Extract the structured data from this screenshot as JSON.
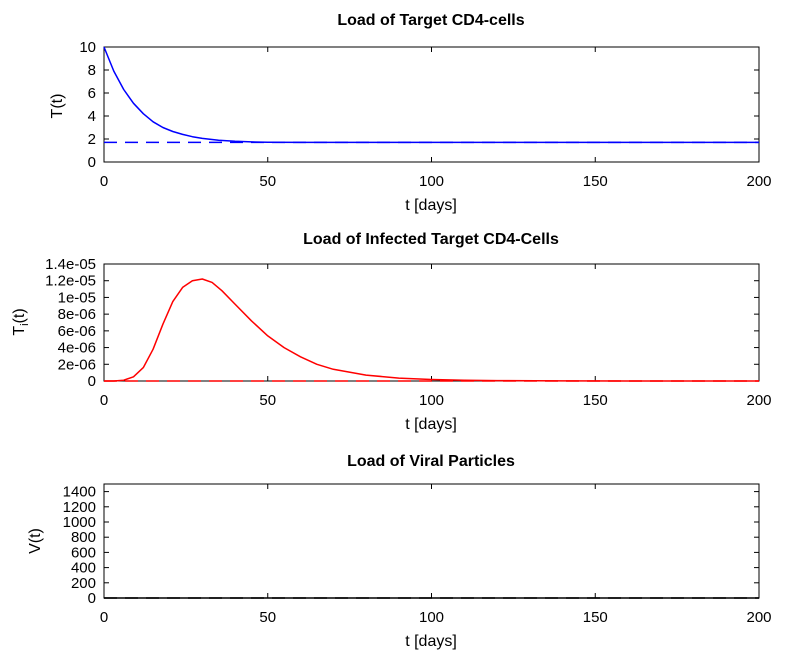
{
  "chart_data": [
    {
      "type": "line",
      "title": "Load of Target CD4-cells",
      "xlabel": "t [days]",
      "ylabel": "T(t)",
      "xlim": [
        0,
        200
      ],
      "ylim": [
        0,
        10
      ],
      "xticks": [
        0,
        50,
        100,
        150,
        200
      ],
      "xtick_labels": [
        "0",
        "50",
        "100",
        "150",
        "200"
      ],
      "yticks": [
        0,
        2,
        4,
        6,
        8,
        10
      ],
      "ytick_labels": [
        "0",
        "2",
        "4",
        "6",
        "8",
        "10"
      ],
      "series": [
        {
          "name": "T",
          "color": "#0000ff",
          "style": "solid",
          "x": [
            0,
            3,
            6,
            9,
            12,
            15,
            18,
            21,
            24,
            27,
            30,
            35,
            40,
            45,
            50,
            60,
            70,
            80,
            100,
            150,
            200
          ],
          "y": [
            10,
            7.9,
            6.3,
            5.1,
            4.2,
            3.5,
            3.0,
            2.65,
            2.4,
            2.2,
            2.05,
            1.9,
            1.8,
            1.75,
            1.72,
            1.7,
            1.7,
            1.7,
            1.7,
            1.7,
            1.7
          ]
        },
        {
          "name": "T equilibrium",
          "color": "#0000ff",
          "style": "dashed",
          "x": [
            0,
            200
          ],
          "y": [
            1.7,
            1.7
          ]
        }
      ]
    },
    {
      "type": "line",
      "title": "Load of Infected Target CD4-Cells",
      "xlabel": "t [days]",
      "ylabel_main": "T",
      "ylabel_sub": "i",
      "ylabel_rest": "(t)",
      "xlim": [
        0,
        200
      ],
      "ylim": [
        0,
        1.4e-05
      ],
      "xticks": [
        0,
        50,
        100,
        150,
        200
      ],
      "xtick_labels": [
        "0",
        "50",
        "100",
        "150",
        "200"
      ],
      "yticks": [
        0,
        2e-06,
        4e-06,
        6e-06,
        8e-06,
        1e-05,
        1.2e-05,
        1.4e-05
      ],
      "ytick_labels": [
        "0",
        "2e-06",
        "4e-06",
        "6e-06",
        "8e-06",
        "1e-05",
        "1.2e-05",
        "1.4e-05"
      ],
      "series": [
        {
          "name": "Ti",
          "color": "#ff0000",
          "style": "solid",
          "x": [
            0,
            3,
            6,
            9,
            12,
            15,
            18,
            21,
            24,
            27,
            30,
            33,
            36,
            40,
            45,
            50,
            55,
            60,
            65,
            70,
            80,
            90,
            100,
            110,
            120,
            140,
            160,
            200
          ],
          "y": [
            0,
            0,
            1e-07,
            5e-07,
            1.6e-06,
            3.8e-06,
            6.8e-06,
            9.5e-06,
            1.12e-05,
            1.2e-05,
            1.22e-05,
            1.18e-05,
            1.08e-05,
            9.2e-06,
            7.2e-06,
            5.4e-06,
            4e-06,
            2.9e-06,
            2e-06,
            1.4e-06,
            7e-07,
            3.5e-07,
            1.8e-07,
            9e-08,
            5e-08,
            1e-08,
            0,
            0
          ]
        },
        {
          "name": "Ti equilibrium",
          "color": "#ff0000",
          "style": "dashed",
          "x": [
            0,
            200
          ],
          "y": [
            0,
            0
          ]
        }
      ]
    },
    {
      "type": "line",
      "title": "Load of Viral Particles",
      "xlabel": "t [days]",
      "ylabel": "V(t)",
      "xlim": [
        0,
        200
      ],
      "ylim": [
        0,
        1500
      ],
      "xticks": [
        0,
        50,
        100,
        150,
        200
      ],
      "xtick_labels": [
        "0",
        "50",
        "100",
        "150",
        "200"
      ],
      "yticks": [
        0,
        200,
        400,
        600,
        800,
        1000,
        1200,
        1400
      ],
      "ytick_labels": [
        "0",
        "200",
        "400",
        "600",
        "800",
        "1000",
        "1200",
        "1400"
      ],
      "series": [
        {
          "name": "V",
          "color": "#000000",
          "style": "solid",
          "x": [
            0,
            200
          ],
          "y": [
            0,
            0
          ]
        },
        {
          "name": "V equilibrium",
          "color": "#000000",
          "style": "dashed",
          "x": [
            0,
            200
          ],
          "y": [
            0,
            0
          ]
        }
      ]
    }
  ]
}
